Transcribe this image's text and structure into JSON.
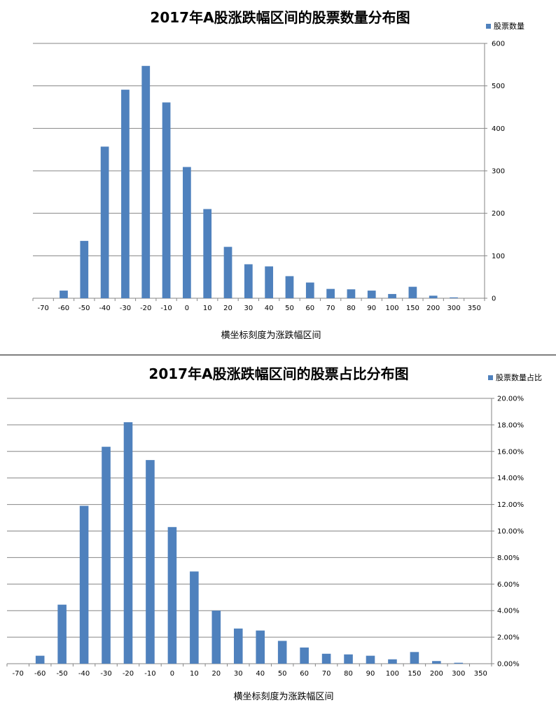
{
  "chart_data": [
    {
      "type": "bar",
      "title": "2017年A股涨跌幅区间的股票数量分布图",
      "xlabel": "横坐标刻度为涨跌幅区间",
      "ylabel": "",
      "legend": [
        "股票数量"
      ],
      "legend_position": "top-right",
      "y_axis_side": "right",
      "grid": true,
      "ylim": [
        0,
        600
      ],
      "yticks": [
        "0",
        "100",
        "200",
        "300",
        "400",
        "500",
        "600"
      ],
      "categories": [
        "-70",
        "-60",
        "-50",
        "-40",
        "-30",
        "-20",
        "-10",
        "0",
        "10",
        "20",
        "30",
        "40",
        "50",
        "60",
        "70",
        "80",
        "90",
        "100",
        "150",
        "200",
        "300",
        "350"
      ],
      "series": [
        {
          "name": "股票数量",
          "color": "#4f81bd",
          "values": [
            0,
            18,
            135,
            357,
            491,
            547,
            461,
            309,
            210,
            121,
            80,
            75,
            52,
            37,
            22,
            21,
            18,
            10,
            27,
            6,
            2,
            0
          ]
        }
      ]
    },
    {
      "type": "bar",
      "title": "2017年A股涨跌幅区间的股票占比分布图",
      "xlabel": "横坐标刻度为涨跌幅区间",
      "ylabel": "",
      "legend": [
        "股票数量占比"
      ],
      "legend_position": "top-right",
      "y_axis_side": "right",
      "grid": true,
      "ylim": [
        0,
        20
      ],
      "yticks": [
        "0.00%",
        "2.00%",
        "4.00%",
        "6.00%",
        "8.00%",
        "10.00%",
        "12.00%",
        "14.00%",
        "16.00%",
        "18.00%",
        "20.00%"
      ],
      "categories": [
        "-70",
        "-60",
        "-50",
        "-40",
        "-30",
        "-20",
        "-10",
        "0",
        "10",
        "20",
        "30",
        "40",
        "50",
        "60",
        "70",
        "80",
        "90",
        "100",
        "150",
        "200",
        "300",
        "350"
      ],
      "series": [
        {
          "name": "股票数量占比",
          "color": "#4f81bd",
          "values": [
            0,
            0.6,
            4.45,
            11.9,
            16.35,
            18.2,
            15.35,
            10.3,
            6.95,
            4.0,
            2.65,
            2.5,
            1.72,
            1.22,
            0.75,
            0.7,
            0.6,
            0.33,
            0.88,
            0.2,
            0.07,
            0
          ]
        }
      ]
    }
  ]
}
